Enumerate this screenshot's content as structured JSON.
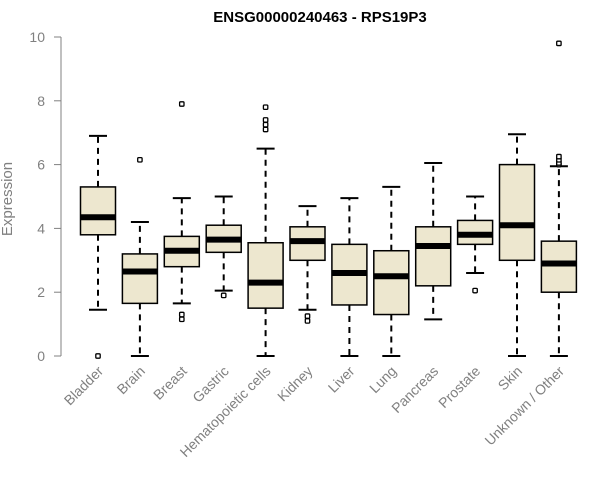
{
  "chart_data": {
    "type": "box",
    "title": "ENSG00000240463 - RPS19P3",
    "xlabel": "",
    "ylabel": "Expression",
    "ylim": [
      0,
      10
    ],
    "yticks": [
      0,
      2,
      4,
      6,
      8,
      10
    ],
    "grid": false,
    "legend": "none",
    "colors": {
      "box_fill": "#ede7cf",
      "box_stroke": "#000000",
      "median": "#000000",
      "axis_text": "#808080",
      "title": "#000000"
    },
    "categories": [
      "Bladder",
      "Brain",
      "Breast",
      "Gastric",
      "Hematopoietic cells",
      "Kidney",
      "Liver",
      "Lung",
      "Pancreas",
      "Prostate",
      "Skin",
      "Unknown / Other"
    ],
    "boxes": [
      {
        "category": "Bladder",
        "whisker_low": 1.45,
        "q1": 3.8,
        "median": 4.35,
        "q3": 5.3,
        "whisker_high": 6.9,
        "outliers": [
          0.0
        ]
      },
      {
        "category": "Brain",
        "whisker_low": 0.0,
        "q1": 1.65,
        "median": 2.65,
        "q3": 3.2,
        "whisker_high": 4.2,
        "outliers": [
          6.15
        ]
      },
      {
        "category": "Breast",
        "whisker_low": 1.65,
        "q1": 2.8,
        "median": 3.3,
        "q3": 3.75,
        "whisker_high": 4.95,
        "outliers": [
          1.3,
          1.15,
          7.9
        ]
      },
      {
        "category": "Gastric",
        "whisker_low": 2.05,
        "q1": 3.25,
        "median": 3.65,
        "q3": 4.1,
        "whisker_high": 5.0,
        "outliers": [
          1.9
        ]
      },
      {
        "category": "Hematopoietic cells",
        "whisker_low": 0.0,
        "q1": 1.5,
        "median": 2.3,
        "q3": 3.55,
        "whisker_high": 6.5,
        "outliers": [
          7.1,
          7.25,
          7.4,
          7.8
        ]
      },
      {
        "category": "Kidney",
        "whisker_low": 1.45,
        "q1": 3.0,
        "median": 3.6,
        "q3": 4.05,
        "whisker_high": 4.7,
        "outliers": [
          1.25,
          1.1
        ]
      },
      {
        "category": "Liver",
        "whisker_low": 0.0,
        "q1": 1.6,
        "median": 2.6,
        "q3": 3.5,
        "whisker_high": 4.95,
        "outliers": []
      },
      {
        "category": "Lung",
        "whisker_low": 0.0,
        "q1": 1.3,
        "median": 2.5,
        "q3": 3.3,
        "whisker_high": 5.3,
        "outliers": []
      },
      {
        "category": "Pancreas",
        "whisker_low": 1.15,
        "q1": 2.2,
        "median": 3.45,
        "q3": 4.05,
        "whisker_high": 6.05,
        "outliers": []
      },
      {
        "category": "Prostate",
        "whisker_low": 2.6,
        "q1": 3.5,
        "median": 3.8,
        "q3": 4.25,
        "whisker_high": 5.0,
        "outliers": [
          2.05
        ]
      },
      {
        "category": "Skin",
        "whisker_low": 0.0,
        "q1": 3.0,
        "median": 4.1,
        "q3": 6.0,
        "whisker_high": 6.95,
        "outliers": []
      },
      {
        "category": "Unknown / Other",
        "whisker_low": 0.0,
        "q1": 2.0,
        "median": 2.9,
        "q3": 3.6,
        "whisker_high": 5.95,
        "outliers": [
          6.0,
          6.05,
          6.15,
          6.25,
          9.8
        ]
      }
    ]
  }
}
